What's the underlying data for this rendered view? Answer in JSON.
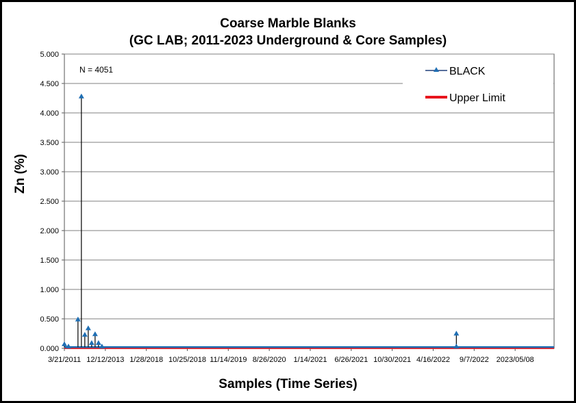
{
  "chart_data": {
    "type": "line",
    "title_line1": "Coarse Marble Blanks",
    "title_line2": "(GC LAB; 2011-2023 Underground & Core Samples)",
    "ylabel": "Zn (%)",
    "xlabel": "Samples (Time Series)",
    "annotation": "N = 4051",
    "ylim": [
      0,
      5
    ],
    "yticks": [
      "0.000",
      "0.500",
      "1.000",
      "1.500",
      "2.000",
      "2.500",
      "3.000",
      "3.500",
      "4.000",
      "4.500",
      "5.000"
    ],
    "xticks": [
      "3/21/2011",
      "12/12/2013",
      "1/28/2018",
      "10/25/2018",
      "11/14/2019",
      "8/26/2020",
      "1/14/2021",
      "6/26/2021",
      "10/30/2021",
      "4/16/2022",
      "9/7/2022",
      "2023/05/08"
    ],
    "grid": true,
    "legend_placement": "top-right",
    "series": [
      {
        "name": "BLACK",
        "color": "#1f6fb4",
        "points": [
          [
            "3/21/2011",
            0.06
          ],
          [
            "3/21/2011",
            0.02
          ],
          [
            "12/12/2013",
            0.48
          ],
          [
            "12/12/2013",
            4.27
          ],
          [
            "12/12/2013",
            0.22
          ],
          [
            "12/12/2013",
            0.33
          ],
          [
            "12/12/2013",
            0.08
          ],
          [
            "12/12/2013",
            0.23
          ],
          [
            "12/12/2013",
            0.08
          ],
          [
            "12/12/2013",
            0.02
          ],
          [
            "9/7/2022",
            0.24
          ],
          [
            "9/7/2022",
            0.02
          ]
        ]
      },
      {
        "name": "Upper Limit",
        "color": "#e8141c",
        "value": 0.01
      }
    ]
  }
}
